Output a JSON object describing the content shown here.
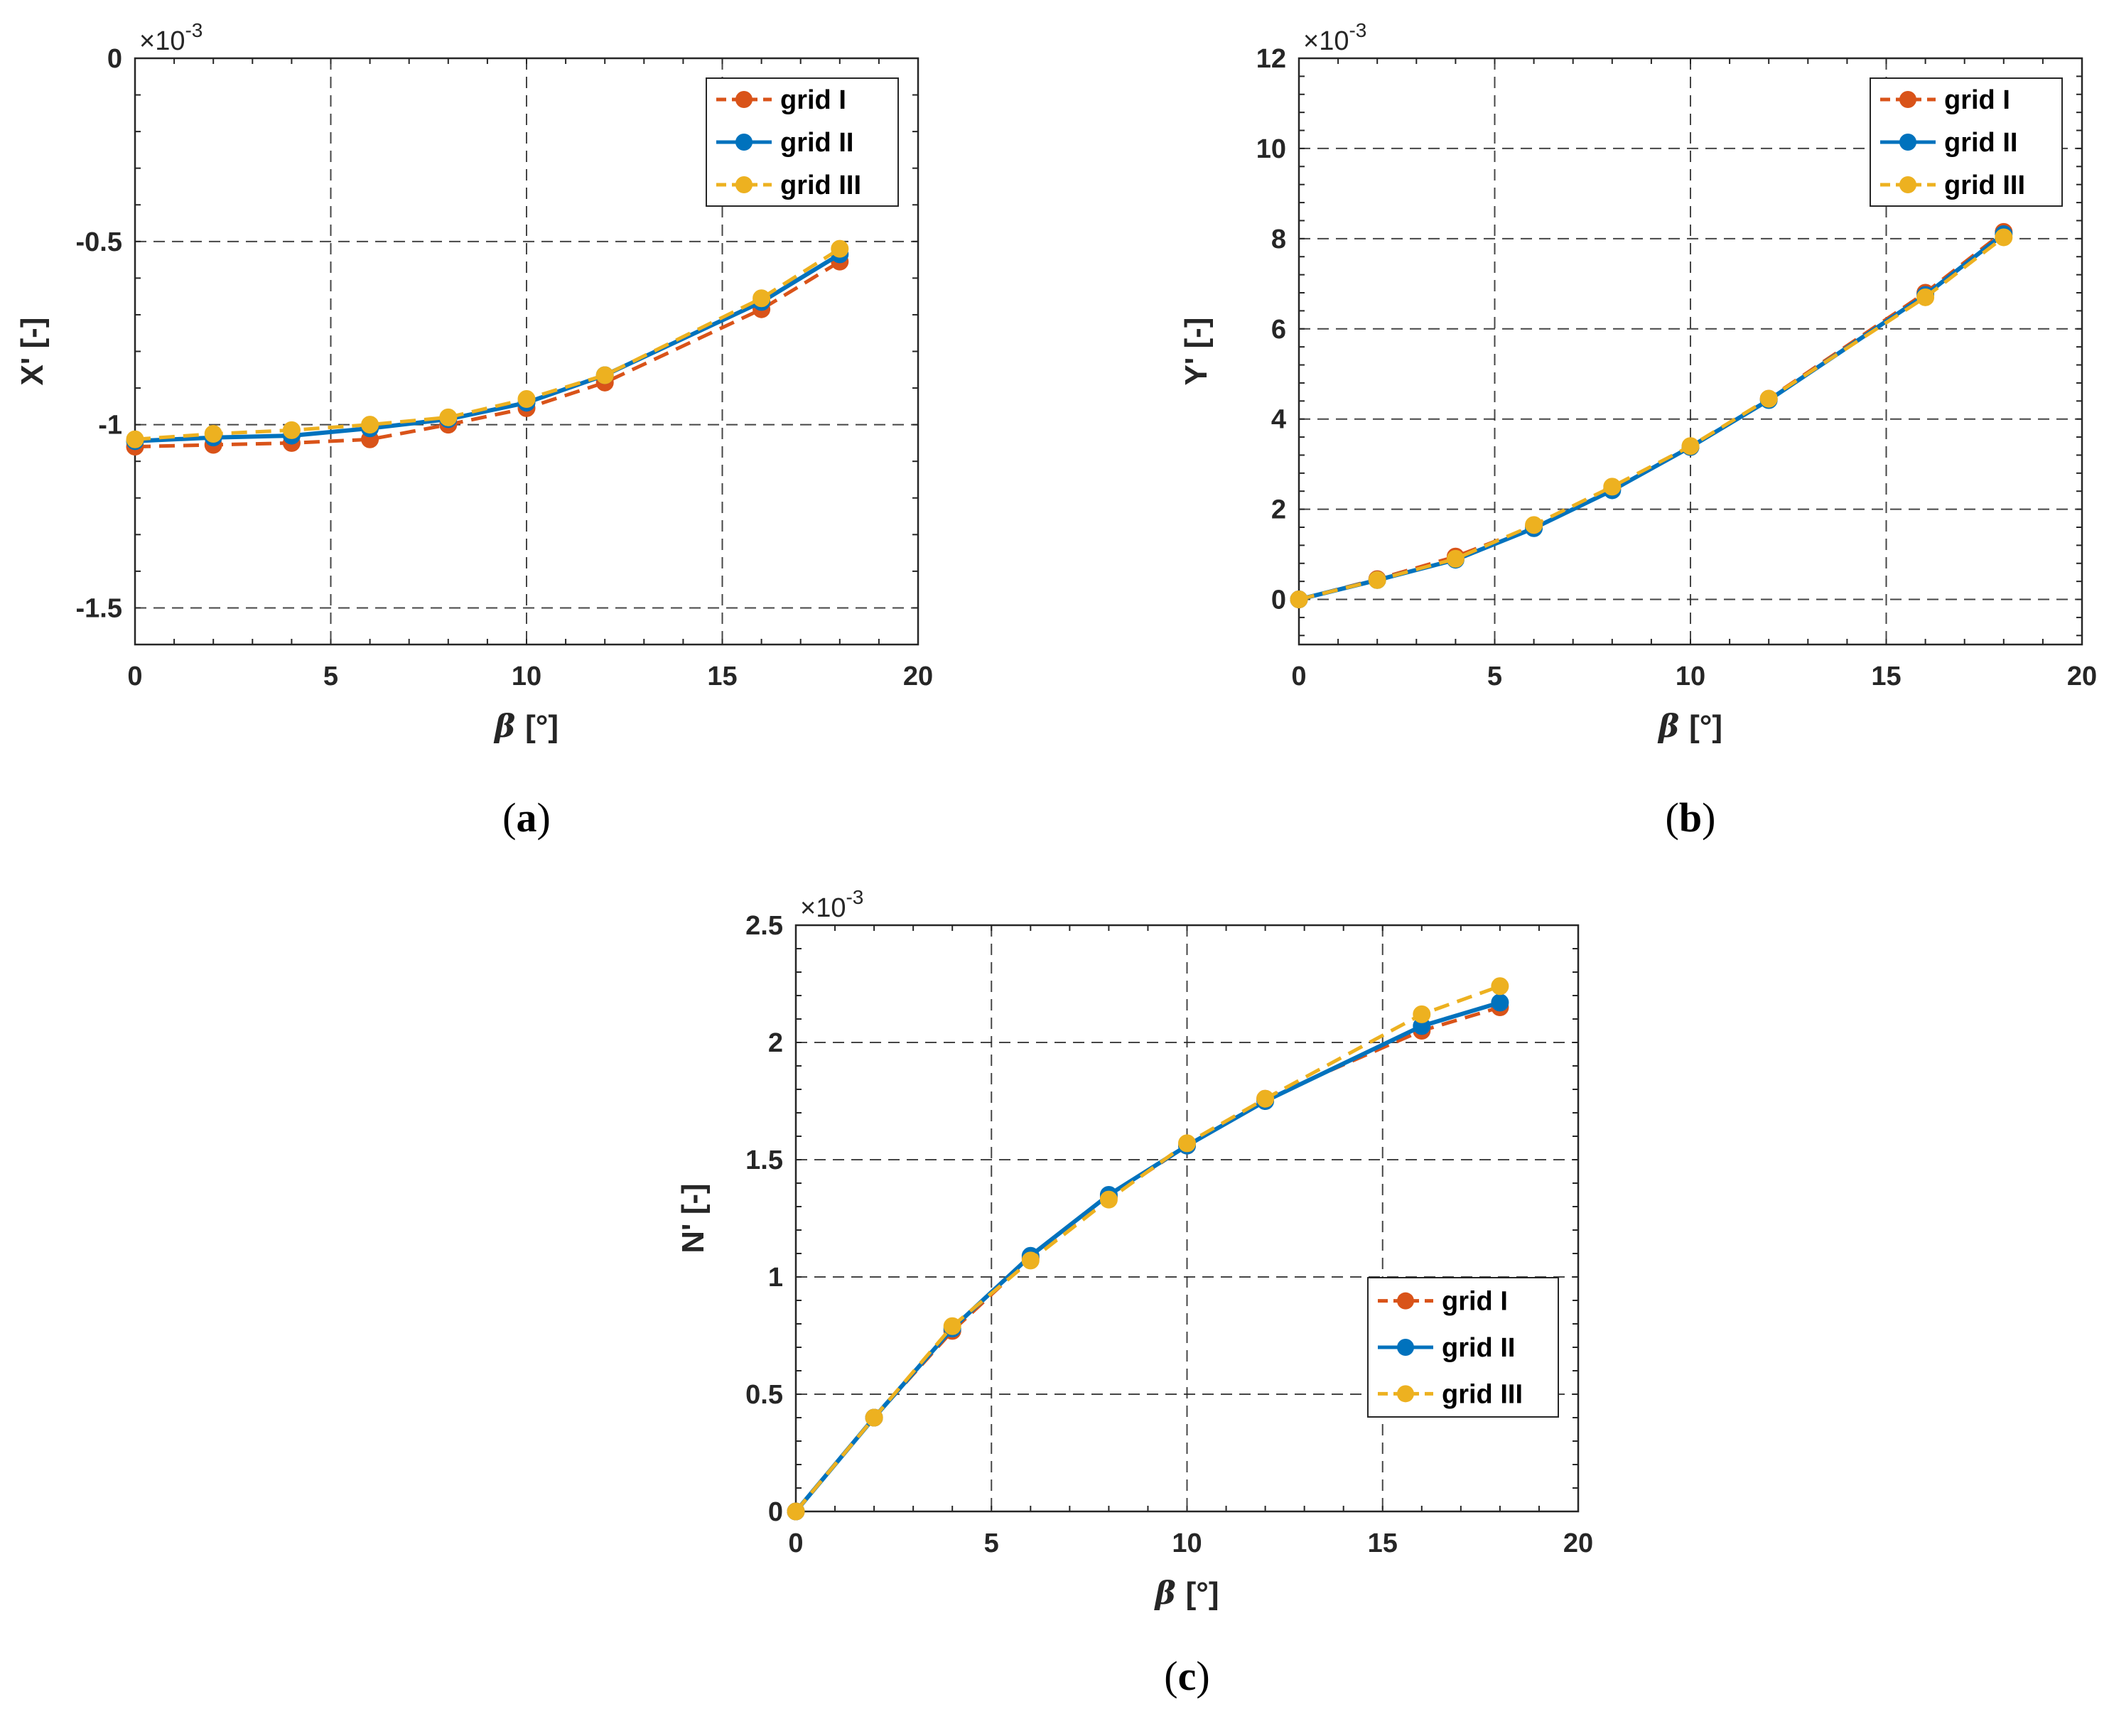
{
  "colors": {
    "grid_I": "#D95319",
    "grid_II": "#0072BD",
    "grid_III": "#EDB120",
    "axis": "#262626",
    "gridline": "#262626"
  },
  "chart_data": [
    {
      "type": "line",
      "caption": "(a)",
      "caption_letter": "a",
      "xlabel": "β [°]",
      "xlabel_symbol": "β",
      "xlabel_unit": "[°]",
      "ylabel": "X' [-]",
      "exponent_base": "×10",
      "exponent_power": "-3",
      "xlim": [
        0,
        20
      ],
      "ylim": [
        -1.6,
        0
      ],
      "xticks": [
        0,
        5,
        10,
        15,
        20
      ],
      "xtick_labels": [
        "0",
        "5",
        "10",
        "15",
        "20"
      ],
      "yticks": [
        0,
        -0.5,
        -1,
        -1.5
      ],
      "ytick_labels": [
        "0",
        "-0.5",
        "-1",
        "-1.5"
      ],
      "grid": true,
      "legend_position": "top-right",
      "x": [
        0,
        2,
        4,
        6,
        8,
        10,
        12,
        16,
        18
      ],
      "series": [
        {
          "name": "grid I",
          "style": "dashed",
          "values": [
            -1.06,
            -1.055,
            -1.05,
            -1.04,
            -1.0,
            -0.955,
            -0.885,
            -0.685,
            -0.555
          ]
        },
        {
          "name": "grid II",
          "style": "solid",
          "values": [
            -1.045,
            -1.035,
            -1.03,
            -1.01,
            -0.985,
            -0.94,
            -0.865,
            -0.665,
            -0.535
          ]
        },
        {
          "name": "grid III",
          "style": "dashed",
          "values": [
            -1.04,
            -1.025,
            -1.015,
            -1.0,
            -0.98,
            -0.93,
            -0.865,
            -0.655,
            -0.52
          ]
        }
      ]
    },
    {
      "type": "line",
      "caption": "(b)",
      "caption_letter": "b",
      "xlabel": "β [°]",
      "xlabel_symbol": "β",
      "xlabel_unit": "[°]",
      "ylabel": "Y' [-]",
      "exponent_base": "×10",
      "exponent_power": "-3",
      "xlim": [
        0,
        20
      ],
      "ylim": [
        -1,
        12
      ],
      "xticks": [
        0,
        5,
        10,
        15,
        20
      ],
      "xtick_labels": [
        "0",
        "5",
        "10",
        "15",
        "20"
      ],
      "yticks": [
        0,
        2,
        4,
        6,
        8,
        10,
        12
      ],
      "ytick_labels": [
        "0",
        "2",
        "4",
        "6",
        "8",
        "10",
        "12"
      ],
      "grid": true,
      "legend_position": "top-right",
      "x": [
        0,
        2,
        4,
        6,
        8,
        10,
        12,
        16,
        18
      ],
      "series": [
        {
          "name": "grid I",
          "style": "dashed",
          "values": [
            0,
            0.45,
            0.95,
            1.62,
            2.45,
            3.38,
            4.45,
            6.8,
            8.15
          ]
        },
        {
          "name": "grid II",
          "style": "solid",
          "values": [
            0,
            0.43,
            0.88,
            1.58,
            2.42,
            3.38,
            4.42,
            6.75,
            8.1
          ]
        },
        {
          "name": "grid III",
          "style": "dashed",
          "values": [
            0,
            0.43,
            0.9,
            1.65,
            2.5,
            3.4,
            4.45,
            6.7,
            8.03
          ]
        }
      ]
    },
    {
      "type": "line",
      "caption": "(c)",
      "caption_letter": "c",
      "xlabel": "β [°]",
      "xlabel_symbol": "β",
      "xlabel_unit": "[°]",
      "ylabel": "N' [-]",
      "exponent_base": "×10",
      "exponent_power": "-3",
      "xlim": [
        0,
        20
      ],
      "ylim": [
        0,
        2.5
      ],
      "xticks": [
        0,
        5,
        10,
        15,
        20
      ],
      "xtick_labels": [
        "0",
        "5",
        "10",
        "15",
        "20"
      ],
      "yticks": [
        0,
        0.5,
        1,
        1.5,
        2,
        2.5
      ],
      "ytick_labels": [
        "0",
        "0.5",
        "1",
        "1.5",
        "2",
        "2.5"
      ],
      "grid": true,
      "legend_position": "bottom-right",
      "x": [
        0,
        2,
        4,
        6,
        8,
        10,
        12,
        16,
        18
      ],
      "series": [
        {
          "name": "grid I",
          "style": "dashed",
          "values": [
            0,
            0.4,
            0.77,
            1.08,
            1.34,
            1.56,
            1.76,
            2.05,
            2.15
          ]
        },
        {
          "name": "grid II",
          "style": "solid",
          "values": [
            0,
            0.4,
            0.78,
            1.09,
            1.35,
            1.56,
            1.75,
            2.07,
            2.17
          ]
        },
        {
          "name": "grid III",
          "style": "dashed",
          "values": [
            0,
            0.4,
            0.79,
            1.07,
            1.33,
            1.57,
            1.76,
            2.12,
            2.24
          ]
        }
      ]
    }
  ]
}
